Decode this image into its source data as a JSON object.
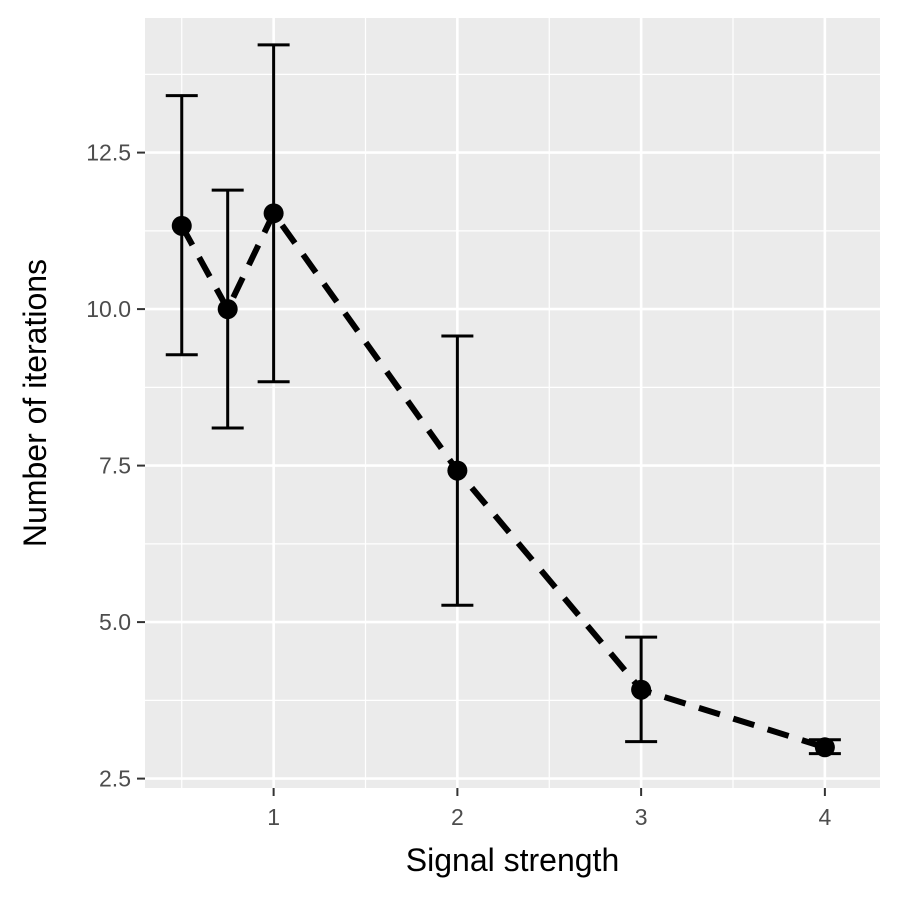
{
  "chart_data": {
    "type": "line",
    "xlabel": "Signal strength",
    "ylabel": "Number of iterations",
    "xlim": [
      0.3,
      4.3
    ],
    "ylim": [
      2.35,
      14.65
    ],
    "x_ticks": [
      1,
      2,
      3,
      4
    ],
    "x_tick_labels": [
      "1",
      "2",
      "3",
      "4"
    ],
    "x_minor_ticks": [
      0.5,
      1.5,
      2.5,
      3.5
    ],
    "y_ticks": [
      2.5,
      5.0,
      7.5,
      10.0,
      12.5
    ],
    "y_tick_labels": [
      "2.5",
      "5.0",
      "7.5",
      "10.0",
      "12.5"
    ],
    "y_minor_ticks": [
      3.75,
      6.25,
      8.75,
      11.25,
      13.75
    ],
    "grid": true,
    "line_style": "dashed",
    "colors": {
      "panel": "#ebebeb",
      "grid": "#ffffff",
      "series": "#000000"
    },
    "series": [
      {
        "x": [
          0.5,
          0.75,
          1,
          2,
          3,
          4
        ],
        "y": [
          11.33,
          10.0,
          11.53,
          7.42,
          3.92,
          3.0
        ],
        "ymin": [
          9.27,
          8.1,
          8.84,
          5.27,
          3.09,
          2.9
        ],
        "ymax": [
          13.41,
          11.9,
          14.22,
          9.57,
          4.76,
          3.12
        ]
      }
    ]
  }
}
